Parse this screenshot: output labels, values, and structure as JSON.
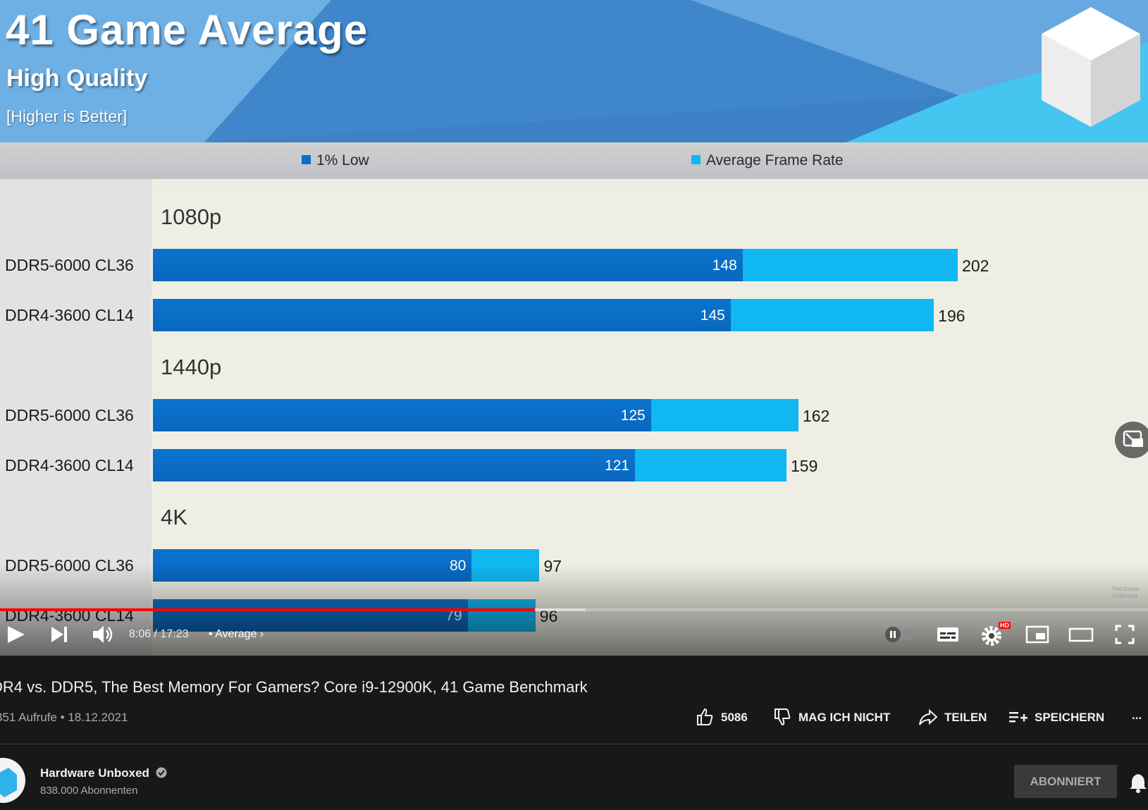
{
  "slide": {
    "title": "41 Game Average",
    "subtitle": "High Quality",
    "note": "[Higher is Better]",
    "watermark": "Hardware Unboxed"
  },
  "chart_data": {
    "type": "bar",
    "orientation": "horizontal",
    "legend": [
      "1% Low",
      "Average Frame Rate"
    ],
    "colors": {
      "1% Low": "#0a6fc9",
      "Average Frame Rate": "#11b7f1"
    },
    "groups": [
      {
        "name": "1080p",
        "rows": [
          {
            "label": "DDR5-6000 CL36",
            "low": 148,
            "avg": 202
          },
          {
            "label": "DDR4-3600 CL14",
            "low": 145,
            "avg": 196
          }
        ]
      },
      {
        "name": "1440p",
        "rows": [
          {
            "label": "DDR5-6000 CL36",
            "low": 125,
            "avg": 162
          },
          {
            "label": "DDR4-3600 CL14",
            "low": 121,
            "avg": 159
          }
        ]
      },
      {
        "name": "4K",
        "rows": [
          {
            "label": "DDR5-6000 CL36",
            "low": 80,
            "avg": 97
          },
          {
            "label": "DDR4-3600 CL14",
            "low": 79,
            "avg": 96
          }
        ]
      }
    ]
  },
  "player": {
    "time": "8:06 / 17:23",
    "chapter": "• Average",
    "progress": 0.466,
    "buffered": 0.51,
    "hd_badge": "HD"
  },
  "video": {
    "title": "DR4 vs. DDR5, The Best Memory For Gamers? Core i9-12900K, 41 Game Benchmark",
    "views": "351 Aufrufe • 18.12.2021",
    "likes": "5086",
    "dislike_label": "MAG ICH NICHT",
    "share_label": "TEILEN",
    "save_label": "SPEICHERN",
    "more": "..."
  },
  "channel": {
    "name": "Hardware Unboxed",
    "subscribers": "838.000 Abonnenten",
    "subscribe_label": "ABONNIERT"
  }
}
